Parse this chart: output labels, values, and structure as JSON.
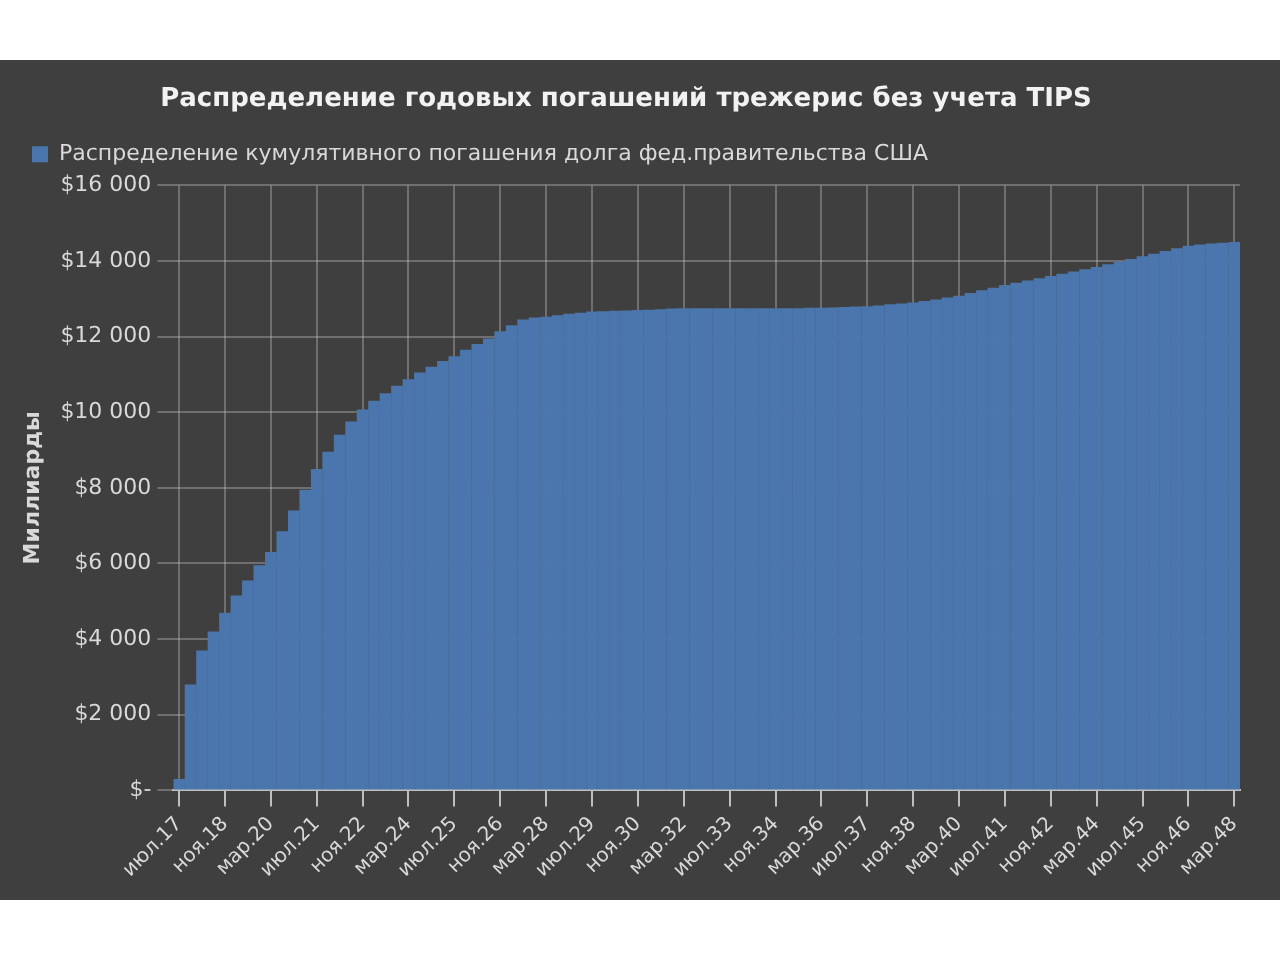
{
  "chart_data": {
    "type": "bar",
    "title": "Распределение годовых погашений трежерис без учета TIPS",
    "ylabel": "Миллиарды",
    "categories": [
      "июл.17",
      null,
      null,
      null,
      "ноя.18",
      null,
      null,
      null,
      "мар.20",
      null,
      null,
      null,
      "июл.21",
      null,
      null,
      null,
      "ноя.22",
      null,
      null,
      null,
      "мар.24",
      null,
      null,
      null,
      "июл.25",
      null,
      null,
      null,
      "ноя.26",
      null,
      null,
      null,
      "мар.28",
      null,
      null,
      null,
      "июл.29",
      null,
      null,
      null,
      "ноя.30",
      null,
      null,
      null,
      "мар.32",
      null,
      null,
      null,
      "июл.33",
      null,
      null,
      null,
      "ноя.34",
      null,
      null,
      null,
      "мар.36",
      null,
      null,
      null,
      "июл.37",
      null,
      null,
      null,
      "ноя.38",
      null,
      null,
      null,
      "мар.40",
      null,
      null,
      null,
      "июл.41",
      null,
      null,
      null,
      "ноя.42",
      null,
      null,
      null,
      "мар.44",
      null,
      null,
      null,
      "июл.45",
      null,
      null,
      null,
      "ноя.46",
      null,
      null,
      null,
      "мар.48"
    ],
    "series": [
      {
        "name": "Распределение кумулятивного погашения долга фед.правительства США",
        "color": "#4a76ad",
        "values": [
          300,
          2800,
          3700,
          4200,
          4700,
          5150,
          5550,
          5950,
          6300,
          6850,
          7400,
          7950,
          8500,
          8950,
          9400,
          9750,
          10070,
          10300,
          10500,
          10700,
          10870,
          11050,
          11200,
          11350,
          11480,
          11650,
          11800,
          11950,
          12140,
          12300,
          12450,
          12500,
          12520,
          12560,
          12600,
          12630,
          12660,
          12670,
          12680,
          12690,
          12700,
          12710,
          12720,
          12740,
          12750,
          12750,
          12750,
          12750,
          12750,
          12750,
          12750,
          12750,
          12750,
          12750,
          12750,
          12760,
          12760,
          12770,
          12780,
          12790,
          12800,
          12820,
          12850,
          12870,
          12900,
          12940,
          12980,
          13030,
          13080,
          13150,
          13220,
          13290,
          13360,
          13420,
          13480,
          13540,
          13600,
          13660,
          13720,
          13780,
          13840,
          13910,
          13980,
          14050,
          14120,
          14190,
          14260,
          14330,
          14400,
          14430,
          14460,
          14480,
          14500
        ]
      }
    ],
    "ylim": [
      0,
      16000
    ],
    "yticks": [
      {
        "value": 0,
        "label": "$-"
      },
      {
        "value": 2000,
        "label": "$2 000"
      },
      {
        "value": 4000,
        "label": "$4 000"
      },
      {
        "value": 6000,
        "label": "$6 000"
      },
      {
        "value": 8000,
        "label": "$8 000"
      },
      {
        "value": 10000,
        "label": "$10 000"
      },
      {
        "value": 12000,
        "label": "$12 000"
      },
      {
        "value": 14000,
        "label": "$14 000"
      },
      {
        "value": 16000,
        "label": "$16 000"
      }
    ],
    "grid": true,
    "legend": "top left"
  }
}
